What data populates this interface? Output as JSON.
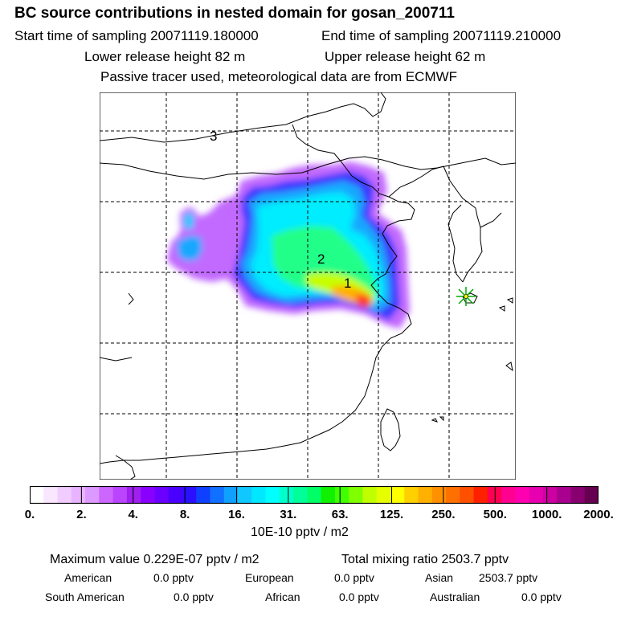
{
  "header": {
    "title": "BC  source contributions in nested domain for gosan_200711",
    "start": "Start time of sampling 20071119.180000",
    "end": "End time of sampling 20071119.210000",
    "lower": "Lower release height   82 m",
    "upper": "Upper release height   62 m",
    "tracer": "Passive tracer used, meteorological data are from ECMWF"
  },
  "map": {
    "labels": [
      "3",
      "2",
      "1"
    ],
    "receptor_marker": "star-marker"
  },
  "colorbar": {
    "ticks": [
      "0.",
      "2.",
      "4.",
      "8.",
      "16.",
      "31.",
      "63.",
      "125.",
      "250.",
      "500.",
      "1000.",
      "2000."
    ],
    "colors": [
      "#ffffff",
      "#f9e6ff",
      "#f1ccff",
      "#e8b3ff",
      "#dc99ff",
      "#cc66ff",
      "#bb44ff",
      "#a020f0",
      "#8a00ff",
      "#6a00ff",
      "#4a00ff",
      "#2a10ff",
      "#1040ff",
      "#1070ff",
      "#10a0ff",
      "#10c8ff",
      "#00e8ff",
      "#00ffff",
      "#00ffcc",
      "#00ff99",
      "#00ff66",
      "#10f000",
      "#40ff00",
      "#80ff00",
      "#c0ff00",
      "#e6ff00",
      "#ffff00",
      "#ffd000",
      "#ffb000",
      "#ff9000",
      "#ff7000",
      "#ff5000",
      "#ff2000",
      "#ff0050",
      "#ff0090",
      "#ff00b0",
      "#e600b0",
      "#cc00a0",
      "#aa0090",
      "#880070",
      "#660050"
    ],
    "unit": "10E-10 pptv / m2"
  },
  "summary": {
    "max": "Maximum value  0.229E-07 pptv / m2",
    "total": "Total mixing ratio     2503.7 pptv",
    "rows": [
      [
        "American",
        "0.0 pptv",
        "European",
        "0.0 pptv",
        "Asian",
        "2503.7 pptv"
      ],
      [
        "South American",
        "0.0 pptv",
        "African",
        "0.0 pptv",
        "Australian",
        "0.0 pptv"
      ]
    ]
  }
}
